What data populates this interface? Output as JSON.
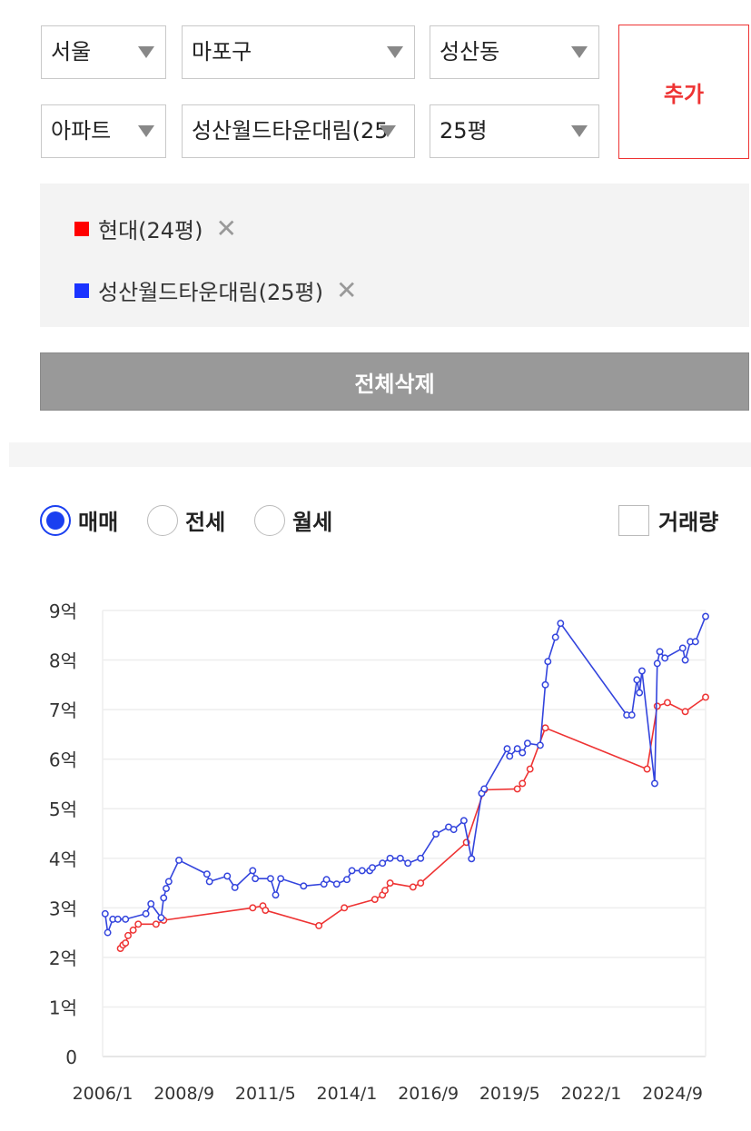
{
  "filters": {
    "region": "서울",
    "district": "마포구",
    "dong": "성산동",
    "type": "아파트",
    "complex": "성산월드타운대림(25",
    "size": "25평",
    "add_label": "추가"
  },
  "compare_list": [
    {
      "label": "현대(24평)",
      "color": "#ff0000"
    },
    {
      "label": "성산월드타운대림(25평)",
      "color": "#1a33ff"
    }
  ],
  "delete_all_label": "전체삭제",
  "trade_types": [
    {
      "label": "매매",
      "selected": true
    },
    {
      "label": "전세",
      "selected": false
    },
    {
      "label": "월세",
      "selected": false
    }
  ],
  "volume_checkbox": {
    "label": "거래량",
    "checked": false
  },
  "colors": {
    "accent": "#e33333",
    "series_red": "#ee3333",
    "series_blue": "#3344dd"
  },
  "chart_data": {
    "type": "line",
    "x_ticks": [
      "2006/1",
      "2008/9",
      "2011/5",
      "2014/1",
      "2016/9",
      "2019/5",
      "2022/1",
      "2024/9"
    ],
    "y_ticks": [
      "0",
      "1억",
      "2억",
      "3억",
      "4억",
      "5억",
      "6억",
      "7억",
      "8억",
      "9억"
    ],
    "ylim": [
      0,
      9
    ],
    "y_unit": "억",
    "grid": true,
    "series": [
      {
        "name": "현대(24평)",
        "color": "#ee3333",
        "points": [
          [
            "2006/8",
            2.18
          ],
          [
            "2006/9",
            2.25
          ],
          [
            "2006/10",
            2.29
          ],
          [
            "2006/11",
            2.44
          ],
          [
            "2007/1",
            2.55
          ],
          [
            "2007/3",
            2.67
          ],
          [
            "2007/10",
            2.67
          ],
          [
            "2008/1",
            2.75
          ],
          [
            "2010/12",
            3.0
          ],
          [
            "2011/4",
            3.04
          ],
          [
            "2011/5",
            2.95
          ],
          [
            "2013/2",
            2.64
          ],
          [
            "2013/12",
            3.0
          ],
          [
            "2014/12",
            3.17
          ],
          [
            "2015/3",
            3.26
          ],
          [
            "2015/4",
            3.35
          ],
          [
            "2015/6",
            3.5
          ],
          [
            "2016/3",
            3.42
          ],
          [
            "2016/6",
            3.5
          ],
          [
            "2017/12",
            4.32
          ],
          [
            "2018/7",
            5.38
          ],
          [
            "2019/8",
            5.4
          ],
          [
            "2019/10",
            5.51
          ],
          [
            "2020/1",
            5.8
          ],
          [
            "2020/7",
            6.63
          ],
          [
            "2023/11",
            5.8
          ],
          [
            "2024/3",
            7.07
          ],
          [
            "2024/7",
            7.14
          ],
          [
            "2025/2",
            6.96
          ],
          [
            "2025/10",
            7.25
          ]
        ]
      },
      {
        "name": "성산월드타운대림(25평)",
        "color": "#3344dd",
        "points": [
          [
            "2006/2",
            2.88
          ],
          [
            "2006/3",
            2.5
          ],
          [
            "2006/5",
            2.77
          ],
          [
            "2006/7",
            2.77
          ],
          [
            "2006/10",
            2.77
          ],
          [
            "2007/6",
            2.88
          ],
          [
            "2007/8",
            3.08
          ],
          [
            "2007/12",
            2.8
          ],
          [
            "2008/1",
            3.2
          ],
          [
            "2008/2",
            3.39
          ],
          [
            "2008/3",
            3.53
          ],
          [
            "2008/7",
            3.96
          ],
          [
            "2009/6",
            3.68
          ],
          [
            "2009/7",
            3.53
          ],
          [
            "2010/2",
            3.64
          ],
          [
            "2010/5",
            3.41
          ],
          [
            "2010/12",
            3.75
          ],
          [
            "2011/1",
            3.59
          ],
          [
            "2011/7",
            3.59
          ],
          [
            "2011/9",
            3.26
          ],
          [
            "2011/11",
            3.59
          ],
          [
            "2012/8",
            3.44
          ],
          [
            "2013/4",
            3.48
          ],
          [
            "2013/5",
            3.57
          ],
          [
            "2013/9",
            3.48
          ],
          [
            "2014/1",
            3.57
          ],
          [
            "2014/3",
            3.75
          ],
          [
            "2014/7",
            3.75
          ],
          [
            "2014/10",
            3.75
          ],
          [
            "2014/11",
            3.81
          ],
          [
            "2015/3",
            3.9
          ],
          [
            "2015/6",
            4.0
          ],
          [
            "2015/10",
            4.0
          ],
          [
            "2016/1",
            3.9
          ],
          [
            "2016/6",
            4.0
          ],
          [
            "2016/12",
            4.49
          ],
          [
            "2017/5",
            4.63
          ],
          [
            "2017/7",
            4.58
          ],
          [
            "2017/11",
            4.76
          ],
          [
            "2018/2",
            3.99
          ],
          [
            "2018/6",
            5.31
          ],
          [
            "2018/7",
            5.4
          ],
          [
            "2019/4",
            6.21
          ],
          [
            "2019/5",
            6.06
          ],
          [
            "2019/8",
            6.21
          ],
          [
            "2019/10",
            6.13
          ],
          [
            "2019/12",
            6.32
          ],
          [
            "2020/5",
            6.28
          ],
          [
            "2020/7",
            7.5
          ],
          [
            "2020/8",
            7.97
          ],
          [
            "2020/11",
            8.46
          ],
          [
            "2021/1",
            8.74
          ],
          [
            "2023/3",
            6.89
          ],
          [
            "2023/5",
            6.89
          ],
          [
            "2023/7",
            7.6
          ],
          [
            "2023/8",
            7.34
          ],
          [
            "2023/9",
            7.78
          ],
          [
            "2024/2",
            5.51
          ],
          [
            "2024/3",
            7.93
          ],
          [
            "2024/4",
            8.17
          ],
          [
            "2024/6",
            8.04
          ],
          [
            "2025/1",
            8.24
          ],
          [
            "2025/2",
            8.0
          ],
          [
            "2025/4",
            8.37
          ],
          [
            "2025/6",
            8.37
          ],
          [
            "2025/10",
            8.88
          ]
        ]
      }
    ]
  }
}
